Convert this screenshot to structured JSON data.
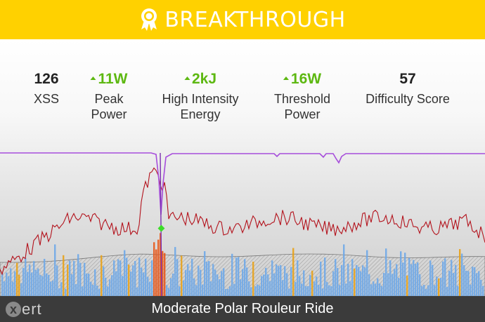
{
  "banner": {
    "title": "BREAKTHROUGH",
    "icon": "award-ribbon-icon",
    "color": "#FFD100"
  },
  "stats": [
    {
      "value": "126",
      "label_lines": [
        "XSS"
      ],
      "trend": "none"
    },
    {
      "value": "11W",
      "label_lines": [
        "Peak",
        "Power"
      ],
      "trend": "up"
    },
    {
      "value": "2kJ",
      "label_lines": [
        "High Intensity",
        "Energy"
      ],
      "trend": "up"
    },
    {
      "value": "16W",
      "label_lines": [
        "Threshold",
        "Power"
      ],
      "trend": "up"
    },
    {
      "value": "57",
      "label_lines": [
        "Difficulty Score"
      ],
      "trend": "none"
    }
  ],
  "colors": {
    "trend_up": "#5DB811",
    "signature_line": "#A64DDB",
    "heart_rate_line": "#B3121C",
    "power_low": "#6FA8E8",
    "power_mid": "#E8A21A",
    "power_high": "#E8581A",
    "breakthrough_marker": "#3DDC2A"
  },
  "footer": {
    "logo_x": "x",
    "logo_rest": "ert",
    "title": "Moderate Polar Rouleur Ride",
    "background": "#3b3b3b"
  }
}
